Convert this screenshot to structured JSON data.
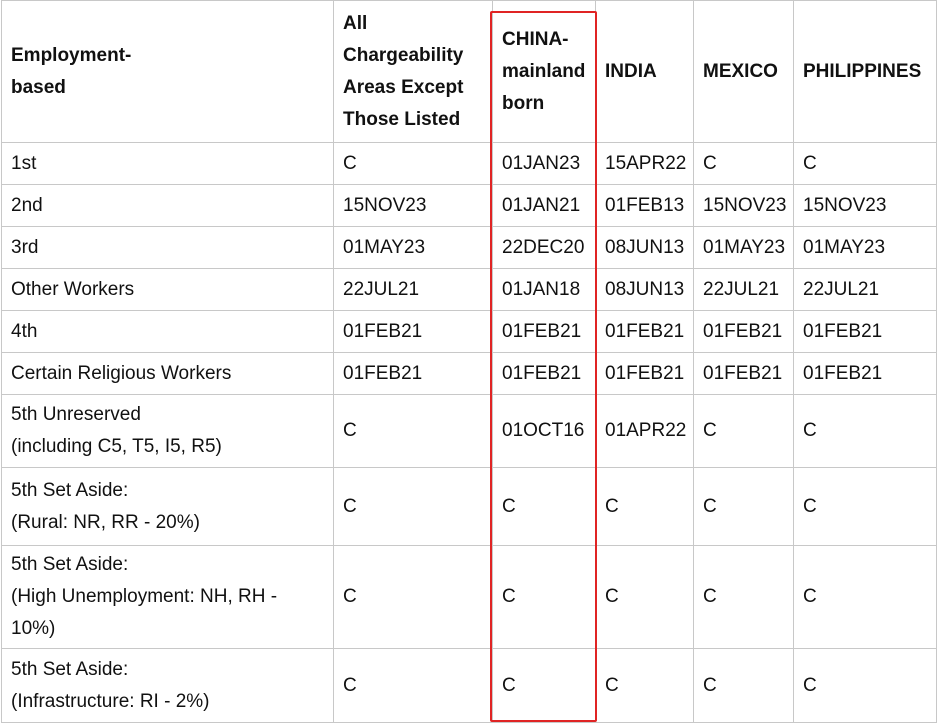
{
  "table": {
    "header": [
      [
        "Employment-",
        "based"
      ],
      [
        "All",
        "Chargeability",
        "Areas Except",
        "Those Listed"
      ],
      [
        "CHINA-",
        "mainland",
        "born"
      ],
      [
        "INDIA"
      ],
      [
        "MEXICO"
      ],
      [
        "PHILIPPINES"
      ]
    ],
    "rows": [
      [
        [
          "1st"
        ],
        "C",
        "01JAN23",
        "15APR22",
        "C",
        "C"
      ],
      [
        [
          "2nd"
        ],
        "15NOV23",
        "01JAN21",
        "01FEB13",
        "15NOV23",
        "15NOV23"
      ],
      [
        [
          "3rd"
        ],
        "01MAY23",
        "22DEC20",
        "08JUN13",
        "01MAY23",
        "01MAY23"
      ],
      [
        [
          "Other Workers"
        ],
        "22JUL21",
        "01JAN18",
        "08JUN13",
        "22JUL21",
        "22JUL21"
      ],
      [
        [
          "4th"
        ],
        "01FEB21",
        "01FEB21",
        "01FEB21",
        "01FEB21",
        "01FEB21"
      ],
      [
        [
          "Certain Religious Workers"
        ],
        "01FEB21",
        "01FEB21",
        "01FEB21",
        "01FEB21",
        "01FEB21"
      ],
      [
        [
          "5th Unreserved",
          "(including C5, T5, I5, R5)"
        ],
        "C",
        "01OCT16",
        "01APR22",
        "C",
        "C"
      ],
      [
        [
          "5th Set Aside:",
          "(Rural: NR, RR - 20%)"
        ],
        "C",
        "C",
        "C",
        "C",
        "C"
      ],
      [
        [
          "5th Set Aside:",
          "(High Unemployment: NH, RH -",
          "10%)"
        ],
        "C",
        "C",
        "C",
        "C",
        "C"
      ],
      [
        [
          "5th Set Aside:",
          "(Infrastructure: RI - 2%)"
        ],
        "C",
        "C",
        "C",
        "C",
        "C"
      ]
    ]
  }
}
